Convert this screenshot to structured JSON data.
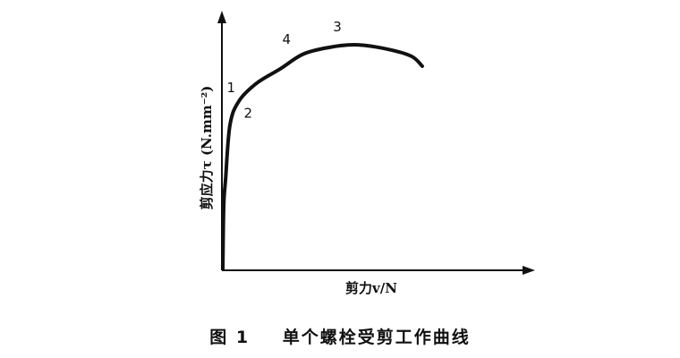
{
  "chart_data": {
    "type": "line",
    "title": "",
    "xlabel": "剪力v/N",
    "ylabel": "剪应力τ (N.mm⁻²)",
    "xlim": [
      0,
      100
    ],
    "ylim": [
      0,
      100
    ],
    "grid": false,
    "ticks": false,
    "series": [
      {
        "color": "#111111",
        "x": [
          0.3,
          0.6,
          1.2,
          2.6,
          5.5,
          11.3,
          18.9,
          26.7,
          36.3,
          44.2,
          53.8,
          61.6,
          65.1
        ],
        "y": [
          0.7,
          25.4,
          35.9,
          57.0,
          66.5,
          73.6,
          79.2,
          85.2,
          88.0,
          88.7,
          87.0,
          84.2,
          80.3
        ]
      }
    ],
    "annotations": [
      {
        "text": "1",
        "x": 3.0,
        "y": 70.0
      },
      {
        "text": "2",
        "x": 8.5,
        "y": 60.0
      },
      {
        "text": "4",
        "x": 21.0,
        "y": 89.0
      },
      {
        "text": "3",
        "x": 37.5,
        "y": 94.0
      }
    ]
  },
  "caption": {
    "figure_number": "图 1",
    "text": "单个螺栓受剪工作曲线"
  }
}
